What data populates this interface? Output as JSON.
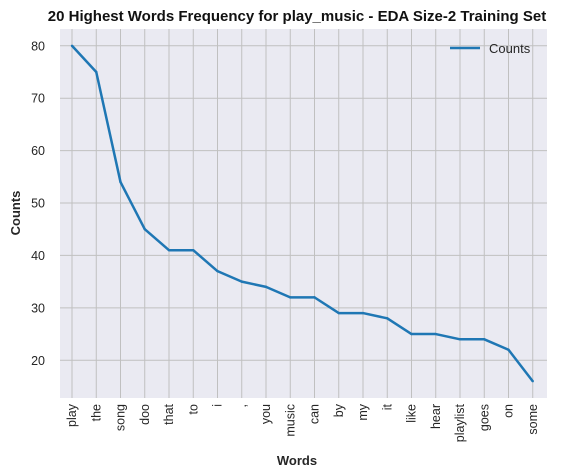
{
  "chart_data": {
    "type": "line",
    "title": "20 Highest Words Frequency for play_music - EDA Size-2 Training Set",
    "xlabel": "Words",
    "ylabel": "Counts",
    "categories": [
      "play",
      "the",
      "song",
      "doo",
      "that",
      "to",
      "i",
      ",",
      "you",
      "music",
      "can",
      "by",
      "my",
      "it",
      "like",
      "hear",
      "playlist",
      "goes",
      "on",
      "some"
    ],
    "series": [
      {
        "name": "Counts",
        "values": [
          80,
          75,
          54,
          45,
          41,
          41,
          37,
          35,
          34,
          32,
          32,
          29,
          29,
          28,
          25,
          25,
          24,
          24,
          22,
          16
        ],
        "color": "#1f77b4"
      }
    ],
    "yticks": [
      20,
      30,
      40,
      50,
      60,
      70,
      80
    ],
    "ylim": [
      12.8,
      83.2
    ],
    "grid": true,
    "legend_position": "top-right",
    "background_color": "#eaeaf2",
    "grid_color": "#c0c0c0"
  }
}
